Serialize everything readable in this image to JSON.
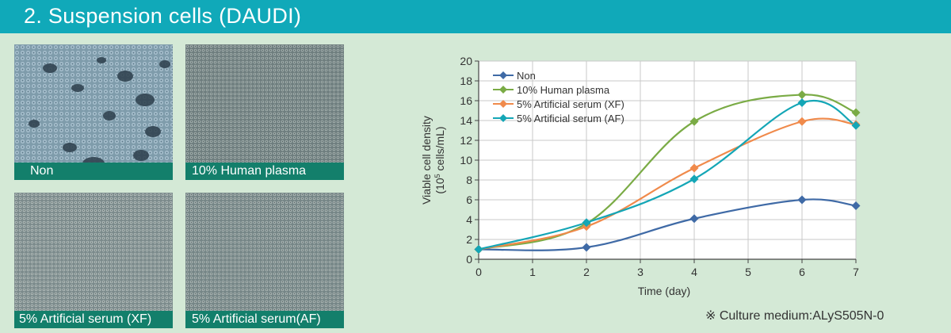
{
  "header": {
    "title": "2. Suspension cells (DAUDI)"
  },
  "images": [
    {
      "caption": "Non"
    },
    {
      "caption": "10% Human plasma"
    },
    {
      "caption": "5% Artificial serum (XF)"
    },
    {
      "caption": "5% Artificial serum(AF)"
    }
  ],
  "note": "※ Culture medium:ALyS505N-0",
  "chart_data": {
    "type": "line",
    "xlabel": "Time (day)",
    "ylabel_line1": "Viable cell density",
    "ylabel_line2_prefix": "(10",
    "ylabel_line2_sup": "5",
    "ylabel_line2_suffix": " cells/mL)",
    "xlim": [
      0,
      7
    ],
    "ylim": [
      0,
      20
    ],
    "xticks": [
      0,
      1,
      2,
      3,
      4,
      5,
      6,
      7
    ],
    "yticks": [
      0,
      2,
      4,
      6,
      8,
      10,
      12,
      14,
      16,
      18,
      20
    ],
    "grid": true,
    "legend_position": "top-left",
    "x": [
      0,
      2,
      4,
      6,
      7
    ],
    "series": [
      {
        "name": "Non",
        "color": "#3f6aa6",
        "values": [
          1.0,
          1.2,
          4.1,
          6.0,
          5.4
        ]
      },
      {
        "name": "10% Human plasma",
        "color": "#7aab45",
        "values": [
          1.0,
          3.6,
          13.9,
          16.6,
          14.8
        ]
      },
      {
        "name": "5% Artificial serum (XF)",
        "color": "#f08a4b",
        "values": [
          1.0,
          3.3,
          9.2,
          13.9,
          13.6
        ]
      },
      {
        "name": "5% Artificial serum (AF)",
        "color": "#14a6b6",
        "values": [
          1.0,
          3.7,
          8.1,
          15.8,
          13.5
        ]
      }
    ]
  }
}
